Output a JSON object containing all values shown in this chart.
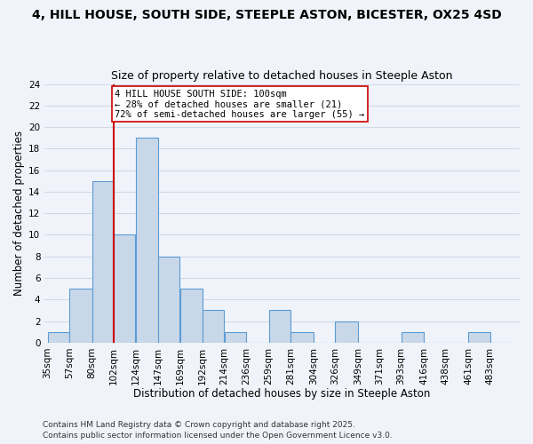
{
  "title": "4, HILL HOUSE, SOUTH SIDE, STEEPLE ASTON, BICESTER, OX25 4SD",
  "subtitle": "Size of property relative to detached houses in Steeple Aston",
  "xlabel": "Distribution of detached houses by size in Steeple Aston",
  "ylabel": "Number of detached properties",
  "bin_labels": [
    "35sqm",
    "57sqm",
    "80sqm",
    "102sqm",
    "124sqm",
    "147sqm",
    "169sqm",
    "192sqm",
    "214sqm",
    "236sqm",
    "259sqm",
    "281sqm",
    "304sqm",
    "326sqm",
    "349sqm",
    "371sqm",
    "393sqm",
    "416sqm",
    "438sqm",
    "461sqm",
    "483sqm"
  ],
  "bar_values": [
    1,
    5,
    15,
    10,
    19,
    8,
    5,
    3,
    1,
    0,
    3,
    1,
    0,
    2,
    0,
    0,
    1,
    0,
    0,
    1,
    0
  ],
  "bar_color": "#c8d8e8",
  "bar_edge_color": "#5b9bd5",
  "bin_edges": [
    35,
    57,
    80,
    102,
    124,
    147,
    169,
    192,
    214,
    236,
    259,
    281,
    304,
    326,
    349,
    371,
    393,
    416,
    438,
    461,
    483,
    505
  ],
  "annotation_line1": "4 HILL HOUSE SOUTH SIDE: 100sqm",
  "annotation_line2": "← 28% of detached houses are smaller (21)",
  "annotation_line3": "72% of semi-detached houses are larger (55) →",
  "vline_color": "#cc0000",
  "ylim": [
    0,
    24
  ],
  "yticks": [
    0,
    2,
    4,
    6,
    8,
    10,
    12,
    14,
    16,
    18,
    20,
    22,
    24
  ],
  "grid_color": "#d0d8e8",
  "background_color": "#f0f4fa",
  "footer_line1": "Contains HM Land Registry data © Crown copyright and database right 2025.",
  "footer_line2": "Contains public sector information licensed under the Open Government Licence v3.0.",
  "title_fontsize": 10,
  "subtitle_fontsize": 9,
  "axis_label_fontsize": 8.5,
  "tick_fontsize": 7.5,
  "annotation_fontsize": 7.5,
  "footer_fontsize": 6.5
}
